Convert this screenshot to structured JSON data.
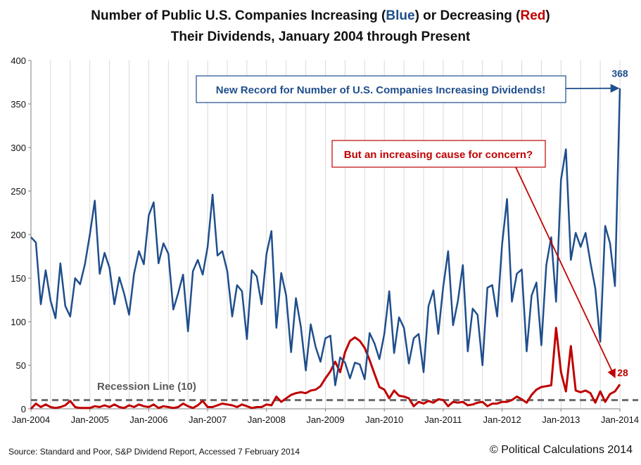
{
  "title": {
    "line1_pre": "Number of Public U.S. Companies Increasing (",
    "line1_blue": "Blue",
    "line1_mid": ")  or Decreasing (",
    "line1_red": "Red",
    "line1_post": ")",
    "line2": "Their Dividends, January 2004 through Present"
  },
  "source": "Source:  Standard and Poor,  S&P Dividend  Report,  Accessed 7 February  2014",
  "copyright": "© Political Calculations 2014",
  "chart_data": {
    "type": "line",
    "title": "Number of Public U.S. Companies Increasing (Blue) or Decreasing (Red) Their Dividends, January 2004 through Present",
    "xlabel": "",
    "ylabel": "",
    "ylim": [
      0,
      400
    ],
    "yticks": [
      "0",
      "50",
      "100",
      "150",
      "200",
      "250",
      "300",
      "350",
      "400"
    ],
    "xticks": [
      "Jan-2004",
      "Jan-2005",
      "Jan-2006",
      "Jan-2007",
      "Jan-2008",
      "Jan-2009",
      "Jan-2010",
      "Jan-2011",
      "Jan-2012",
      "Jan-2013",
      "Jan-2014"
    ],
    "grid": "vertical",
    "series": [
      {
        "name": "Increasing",
        "color": "#1f4e8c",
        "values": [
          197,
          191,
          120,
          159,
          124,
          104,
          167,
          118,
          106,
          150,
          143,
          166,
          200,
          239,
          155,
          179,
          162,
          120,
          151,
          132,
          108,
          155,
          181,
          166,
          222,
          237,
          167,
          190,
          178,
          114,
          133,
          154,
          89,
          158,
          171,
          154,
          186,
          246,
          176,
          181,
          158,
          106,
          142,
          135,
          80,
          159,
          152,
          120,
          178,
          204,
          93,
          156,
          130,
          65,
          127,
          94,
          44,
          97,
          71,
          54,
          81,
          84,
          27,
          59,
          53,
          35,
          53,
          51,
          34,
          87,
          75,
          57,
          86,
          135,
          64,
          105,
          93,
          52,
          81,
          86,
          42,
          118,
          136,
          86,
          140,
          181,
          96,
          124,
          165,
          66,
          115,
          108,
          50,
          139,
          142,
          106,
          189,
          241,
          123,
          155,
          160,
          66,
          130,
          145,
          73,
          165,
          197,
          123,
          263,
          298,
          171,
          202,
          186,
          202,
          168,
          138,
          77,
          210,
          190,
          141,
          368
        ]
      },
      {
        "name": "Decreasing",
        "color": "#c00000",
        "values": [
          0,
          6,
          2,
          5,
          2,
          1,
          2,
          4,
          9,
          2,
          1,
          1,
          1,
          3,
          2,
          4,
          2,
          5,
          2,
          1,
          4,
          2,
          5,
          3,
          2,
          5,
          1,
          3,
          2,
          1,
          2,
          6,
          3,
          1,
          4,
          9,
          2,
          2,
          4,
          6,
          5,
          4,
          2,
          5,
          3,
          1,
          2,
          2,
          5,
          4,
          14,
          8,
          12,
          16,
          18,
          19,
          18,
          21,
          22,
          26,
          35,
          43,
          54,
          42,
          65,
          78,
          82,
          78,
          70,
          56,
          40,
          25,
          22,
          12,
          21,
          15,
          14,
          12,
          3,
          8,
          6,
          9,
          7,
          11,
          10,
          3,
          8,
          7,
          8,
          4,
          5,
          7,
          8,
          3,
          6,
          6,
          8,
          8,
          10,
          14,
          11,
          7,
          16,
          22,
          25,
          26,
          27,
          93,
          42,
          20,
          72,
          21,
          19,
          21,
          18,
          7,
          20,
          8,
          17,
          20,
          28
        ]
      },
      {
        "name": "Recession Line",
        "color": "#6b6b6b",
        "values": [
          10
        ]
      }
    ],
    "annotations": [
      {
        "text": "New Record for Number of U.S. Companies Increasing Dividends!",
        "color": "#1f4e8c"
      },
      {
        "text": "But an increasing cause for concern?",
        "color": "#c00000"
      },
      {
        "text": "Recession Line (10)",
        "color": "#595959"
      },
      {
        "text": "368",
        "color": "#1f4e8c"
      },
      {
        "text": "28",
        "color": "#c00000"
      }
    ]
  }
}
